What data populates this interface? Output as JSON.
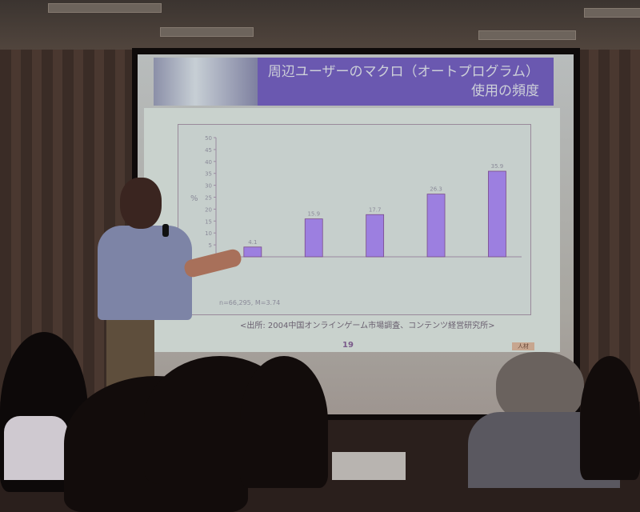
{
  "slide": {
    "title_line1": "周辺ユーザーのマクロ（オートプログラム）",
    "title_line2": "使用の頻度",
    "source": "<出所: 2004中国オンラインゲーム市場調査、コンテンツ経営研究所>",
    "page_number": "19",
    "stamp": "人材"
  },
  "chart_data": {
    "type": "bar",
    "categories": [
      "",
      "",
      "",
      "",
      ""
    ],
    "values": [
      4.1,
      15.9,
      17.7,
      26.3,
      35.9
    ],
    "ylabel": "%",
    "ylim": [
      0,
      50
    ],
    "yticks": [
      0,
      5,
      10,
      15,
      20,
      25,
      30,
      35,
      40,
      45,
      50
    ],
    "note": "n=66,295, M=3.74",
    "bar_color": "#9c7fe0",
    "grid": false
  }
}
